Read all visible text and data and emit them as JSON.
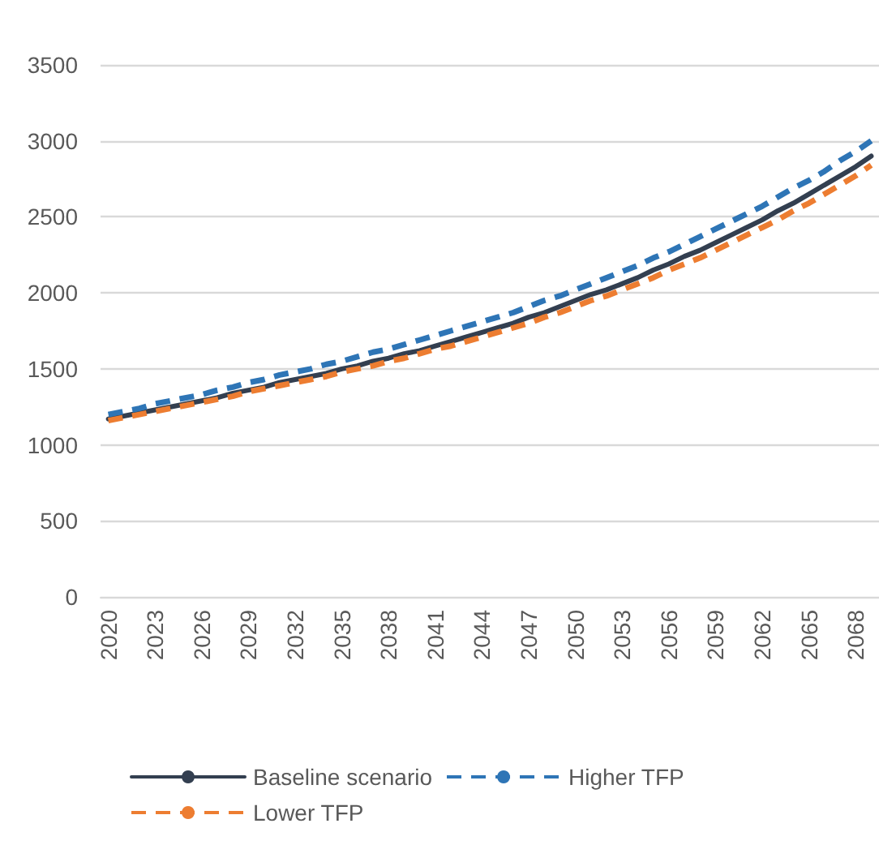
{
  "chart_data": {
    "type": "line",
    "categories": [
      "2020",
      null,
      null,
      "2023",
      null,
      null,
      "2026",
      null,
      null,
      "2029",
      null,
      null,
      "2032",
      null,
      null,
      "2035",
      null,
      null,
      "2038",
      null,
      null,
      "2041",
      null,
      null,
      "2044",
      null,
      null,
      "2047",
      null,
      null,
      "2050",
      null,
      null,
      "2053",
      null,
      null,
      "2056",
      null,
      null,
      "2059",
      null,
      null,
      "2062",
      null,
      null,
      "2065",
      null,
      null,
      "2068",
      null
    ],
    "series": [
      {
        "name": "Baseline scenario",
        "color": "#333f50",
        "line_style": "solid",
        "values": [
          1170,
          1190,
          1210,
          1230,
          1250,
          1270,
          1290,
          1310,
          1340,
          1360,
          1380,
          1410,
          1430,
          1450,
          1470,
          1500,
          1520,
          1550,
          1570,
          1600,
          1620,
          1650,
          1680,
          1710,
          1740,
          1770,
          1800,
          1840,
          1870,
          1910,
          1950,
          1990,
          2020,
          2060,
          2100,
          2150,
          2190,
          2240,
          2280,
          2330,
          2380,
          2430,
          2480,
          2540,
          2590,
          2650,
          2710,
          2770,
          2830,
          2900
        ]
      },
      {
        "name": "Higher TFP",
        "color": "#2e75b6",
        "line_style": "dashed",
        "values": [
          1200,
          1220,
          1240,
          1270,
          1290,
          1310,
          1330,
          1360,
          1380,
          1410,
          1430,
          1460,
          1480,
          1500,
          1530,
          1550,
          1580,
          1610,
          1630,
          1660,
          1690,
          1720,
          1750,
          1780,
          1810,
          1840,
          1870,
          1910,
          1950,
          1980,
          2020,
          2060,
          2100,
          2140,
          2180,
          2230,
          2270,
          2320,
          2370,
          2420,
          2470,
          2520,
          2570,
          2630,
          2690,
          2740,
          2800,
          2870,
          2930,
          3000
        ]
      },
      {
        "name": "Lower TFP",
        "color": "#ed7d31",
        "line_style": "dashed",
        "values": [
          1160,
          1180,
          1200,
          1220,
          1240,
          1260,
          1280,
          1300,
          1320,
          1350,
          1370,
          1390,
          1410,
          1430,
          1450,
          1480,
          1500,
          1520,
          1550,
          1570,
          1600,
          1630,
          1650,
          1680,
          1710,
          1740,
          1770,
          1800,
          1840,
          1870,
          1910,
          1950,
          1980,
          2020,
          2060,
          2100,
          2150,
          2190,
          2230,
          2280,
          2330,
          2380,
          2430,
          2480,
          2540,
          2590,
          2650,
          2710,
          2770,
          2840
        ]
      }
    ],
    "ylim": [
      0,
      3500
    ],
    "yticks": [
      0,
      500,
      1000,
      1500,
      2000,
      2500,
      3000,
      3500
    ],
    "grid": "y",
    "legend": "bottom",
    "marker": "none"
  }
}
